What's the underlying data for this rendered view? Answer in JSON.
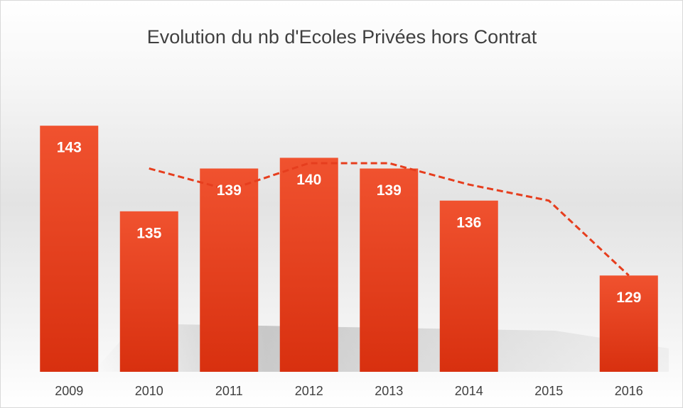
{
  "chart_data": {
    "type": "bar",
    "title": "Evolution du nb d'Ecoles Privées hors Contrat",
    "categories": [
      "2009",
      "2010",
      "2011",
      "2012",
      "2013",
      "2014",
      "2015",
      "2016"
    ],
    "values": [
      143,
      135,
      139,
      140,
      139,
      136,
      null,
      129
    ],
    "color": "#e63e1e",
    "trendline": {
      "values": [
        null,
        139,
        137,
        139.5,
        139.5,
        137.5,
        136,
        129
      ],
      "color": "#e63e1e",
      "dashed": true
    },
    "ylim": [
      120,
      145
    ],
    "grid": false
  }
}
